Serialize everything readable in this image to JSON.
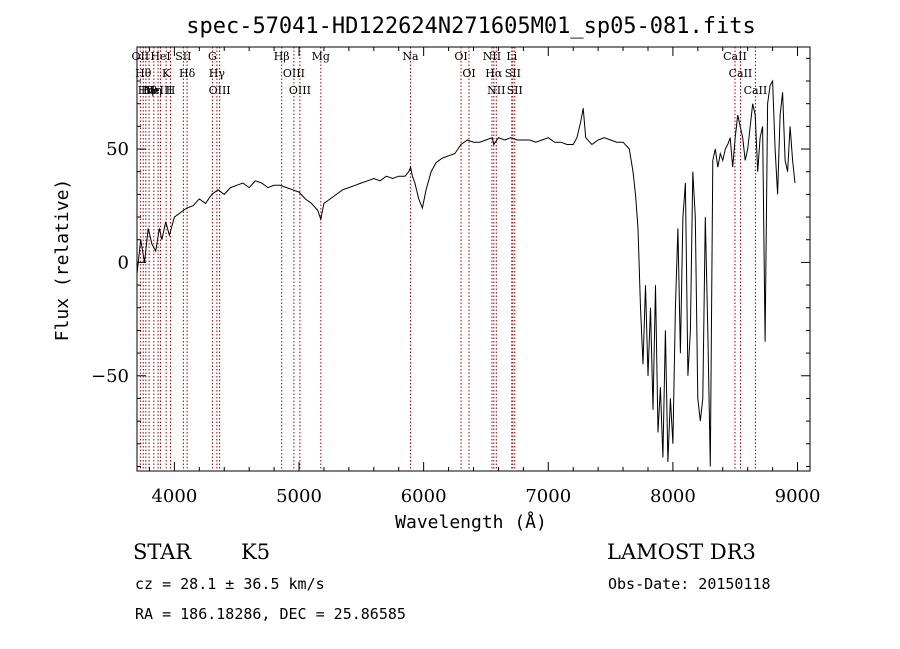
{
  "chart_data": {
    "type": "line",
    "title": "spec-57041-HD122624N271605M01_sp05-081.fits",
    "xlabel": "Wavelength (Å)",
    "ylabel": "Flux (relative)",
    "xlim": [
      3700,
      9100
    ],
    "ylim": [
      -92,
      95
    ],
    "x_ticks": [
      4000,
      5000,
      6000,
      7000,
      8000,
      9000
    ],
    "y_ticks": [
      -50,
      0,
      50
    ],
    "grid": false,
    "series": [
      {
        "x": [
          3700,
          3730,
          3760,
          3790,
          3820,
          3850,
          3880,
          3900,
          3930,
          3960,
          4000,
          4050,
          4100,
          4150,
          4200,
          4250,
          4300,
          4350,
          4400,
          4450,
          4500,
          4550,
          4600,
          4650,
          4700,
          4750,
          4800,
          4850,
          4900,
          4950,
          5000,
          5050,
          5100,
          5150,
          5175,
          5200,
          5250,
          5300,
          5350,
          5400,
          5450,
          5500,
          5550,
          5600,
          5650,
          5700,
          5750,
          5800,
          5850,
          5880,
          5895,
          5910,
          5930,
          5960,
          5990,
          6020,
          6060,
          6100,
          6150,
          6200,
          6250,
          6300,
          6350,
          6400,
          6450,
          6500,
          6550,
          6563,
          6600,
          6650,
          6700,
          6750,
          6800,
          6850,
          6900,
          6950,
          7000,
          7050,
          7100,
          7150,
          7200,
          7230,
          7260,
          7280,
          7300,
          7350,
          7400,
          7450,
          7500,
          7550,
          7600,
          7650,
          7680,
          7700,
          7720,
          7740,
          7760,
          7780,
          7800,
          7820,
          7840,
          7860,
          7880,
          7900,
          7920,
          7940,
          7960,
          7980,
          8000,
          8020,
          8040,
          8060,
          8080,
          8100,
          8120,
          8140,
          8160,
          8180,
          8200,
          8220,
          8240,
          8260,
          8280,
          8300,
          8320,
          8340,
          8360,
          8380,
          8400,
          8420,
          8440,
          8460,
          8480,
          8500,
          8520,
          8540,
          8560,
          8580,
          8600,
          8620,
          8640,
          8660,
          8680,
          8700,
          8720,
          8740,
          8760,
          8780,
          8800,
          8820,
          8840,
          8860,
          8880,
          8900,
          8920,
          8940,
          8960,
          8980
        ],
        "y": [
          -5,
          10,
          0,
          15,
          8,
          5,
          15,
          10,
          18,
          12,
          20,
          22,
          24,
          25,
          28,
          26,
          30,
          32,
          30,
          33,
          34,
          35,
          33,
          36,
          35,
          33,
          34,
          34,
          33,
          32,
          31,
          28,
          26,
          23,
          19,
          26,
          28,
          30,
          32,
          33,
          34,
          35,
          36,
          37,
          36,
          38,
          37,
          38,
          38,
          40,
          42,
          38,
          35,
          28,
          24,
          32,
          40,
          44,
          46,
          47,
          48,
          52,
          54,
          53,
          53,
          54,
          55,
          52,
          55,
          54,
          55,
          54,
          54,
          54,
          53,
          54,
          55,
          53,
          53,
          52,
          52,
          55,
          62,
          68,
          55,
          52,
          54,
          55,
          54,
          53,
          53,
          50,
          40,
          30,
          15,
          -20,
          -45,
          -10,
          -50,
          -20,
          -65,
          -10,
          -75,
          -55,
          -86,
          -30,
          -88,
          -60,
          -80,
          -20,
          15,
          -40,
          20,
          35,
          -50,
          -30,
          40,
          20,
          -60,
          -70,
          -60,
          20,
          -30,
          -90,
          45,
          50,
          42,
          48,
          45,
          50,
          52,
          55,
          42,
          55,
          65,
          60,
          55,
          45,
          50,
          60,
          70,
          65,
          40,
          55,
          60,
          -35,
          70,
          78,
          80,
          50,
          30,
          65,
          75,
          45,
          40,
          60,
          45,
          35
        ]
      }
    ],
    "lines": [
      {
        "w": 3727,
        "label": "OII"
      },
      {
        "w": 3750,
        "label": "Hθ"
      },
      {
        "w": 3771,
        "label": "Hη"
      },
      {
        "w": 3797,
        "label": "Hθ"
      },
      {
        "w": 3835,
        "label": "Hη"
      },
      {
        "w": 3869,
        "label": "NeIII"
      },
      {
        "w": 3889,
        "label": "HeI"
      },
      {
        "w": 3934,
        "label": "K"
      },
      {
        "w": 3969,
        "label": "H"
      },
      {
        "w": 4072,
        "label": "SII"
      },
      {
        "w": 4102,
        "label": "Hδ"
      },
      {
        "w": 4305,
        "label": "G"
      },
      {
        "w": 4341,
        "label": "Hγ"
      },
      {
        "w": 4363,
        "label": "OIII"
      },
      {
        "w": 4861,
        "label": "Hβ"
      },
      {
        "w": 4959,
        "label": "OIII"
      },
      {
        "w": 5007,
        "label": "OIII"
      },
      {
        "w": 5175,
        "label": "Mg"
      },
      {
        "w": 5894,
        "label": "Na"
      },
      {
        "w": 6300,
        "label": "OI"
      },
      {
        "w": 6364,
        "label": "OI"
      },
      {
        "w": 6548,
        "label": "NII"
      },
      {
        "w": 6563,
        "label": "Hα"
      },
      {
        "w": 6583,
        "label": "NII"
      },
      {
        "w": 6707,
        "label": "Li"
      },
      {
        "w": 6716,
        "label": "SII"
      },
      {
        "w": 6731,
        "label": "SII"
      },
      {
        "w": 8498,
        "label": "CaII"
      },
      {
        "w": 8542,
        "label": "CaII"
      },
      {
        "w": 8662,
        "label": "CaII"
      }
    ],
    "line_color": "#a00000"
  },
  "info": {
    "object_class": "STAR",
    "subclass": "K5",
    "survey": "LAMOST DR3",
    "redshift": "cz = 28.1 ± 36.5 km/s",
    "obs_date": "Obs-Date: 20150118",
    "coords": "RA = 186.18286, DEC =  25.86585"
  }
}
